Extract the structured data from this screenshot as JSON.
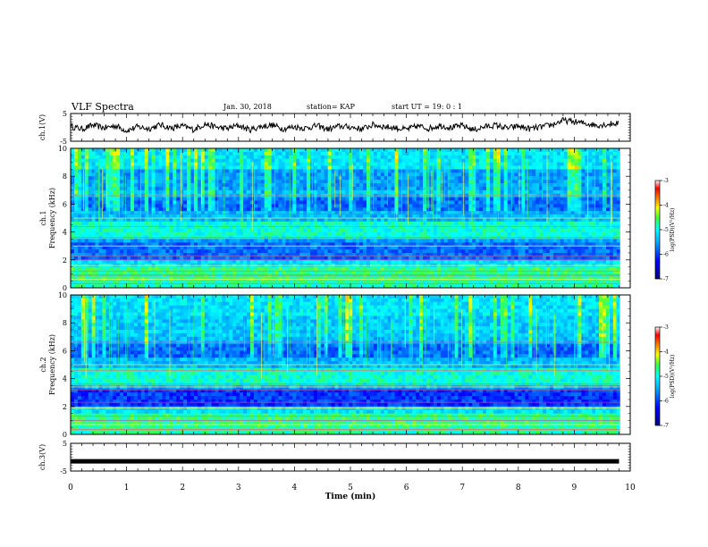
{
  "header": {
    "title": "VLF Spectra",
    "date": "Jan. 30, 2018",
    "station": "station= KAP",
    "start": "start  UT =   19: 0  : 1"
  },
  "chart_data": [
    {
      "type": "line",
      "panel": "ch1-waveform",
      "ylabel": "ch.1(V)",
      "ylim": [
        -5,
        5
      ],
      "yticks": [
        "5",
        "-5"
      ],
      "xlim": [
        0,
        10
      ],
      "series": [
        {
          "x": [
            0.0,
            0.2,
            0.4,
            0.6,
            0.8,
            1.0,
            1.2,
            1.4,
            1.6,
            1.8,
            2.0,
            2.2,
            2.4,
            2.6,
            2.8,
            3.0,
            3.2,
            3.4,
            3.6,
            3.8,
            4.0,
            4.2,
            4.4,
            4.6,
            4.8,
            5.0,
            5.2,
            5.4,
            5.6,
            5.8,
            6.0,
            6.2,
            6.4,
            6.6,
            6.8,
            7.0,
            7.2,
            7.4,
            7.6,
            7.8,
            8.0,
            8.2,
            8.4,
            8.6,
            8.8,
            9.0,
            9.2,
            9.4,
            9.6,
            9.8
          ],
          "y": [
            0.4,
            -0.6,
            0.8,
            -0.2,
            0.6,
            -1.2,
            0.2,
            -0.5,
            0.9,
            -0.3,
            0.5,
            -0.8,
            1.2,
            0.1,
            -0.4,
            0.7,
            -0.9,
            0.3,
            0.8,
            -0.5,
            0.2,
            -0.3,
            0.6,
            -0.7,
            0.4,
            0.1,
            -0.6,
            0.9,
            0.3,
            -0.2,
            -0.8,
            0.5,
            -0.4,
            0.7,
            -0.1,
            0.6,
            -0.9,
            0.2,
            0.8,
            -0.3,
            0.4,
            -0.5,
            0.1,
            0.9,
            2.5,
            2.0,
            1.4,
            0.8,
            1.1,
            1.6
          ]
        }
      ]
    },
    {
      "type": "heatmap",
      "panel": "ch1-spectrogram",
      "ylabel": "ch.1 Frequency (kHz)",
      "ylim": [
        0,
        10
      ],
      "yticks": [
        "0",
        "2",
        "4",
        "6",
        "8",
        "10"
      ],
      "xlim": [
        0,
        10
      ],
      "colorbar": {
        "label": "log(PSD)(V²/Hz)",
        "range": [
          -7,
          -3
        ],
        "ticks": [
          "-3",
          "-4",
          "-5",
          "-6",
          "-7"
        ]
      }
    },
    {
      "type": "heatmap",
      "panel": "ch2-spectrogram",
      "ylabel": "ch.2 Frequency (kHz)",
      "ylim": [
        0,
        10
      ],
      "yticks": [
        "0",
        "2",
        "4",
        "6",
        "8",
        "10"
      ],
      "xlim": [
        0,
        10
      ],
      "colorbar": {
        "label": "log(PSD)(V²/Hz)",
        "range": [
          -7,
          -3
        ],
        "ticks": [
          "-3",
          "-4",
          "-5",
          "-6",
          "-7"
        ]
      }
    },
    {
      "type": "line",
      "panel": "ch3-waveform",
      "ylabel": "ch.3(V)",
      "ylim": [
        -5,
        5
      ],
      "yticks": [
        "5",
        "-5"
      ],
      "xlim": [
        0,
        10
      ],
      "series": [
        {
          "x": [
            0,
            9.8
          ],
          "y": [
            -1.5,
            -1.5
          ]
        }
      ]
    }
  ],
  "xaxis": {
    "label": "Time (min)",
    "ticks": [
      "0",
      "1",
      "2",
      "3",
      "4",
      "5",
      "6",
      "7",
      "8",
      "9",
      "10"
    ]
  },
  "colors": {
    "scale": [
      "#00007a",
      "#0000ff",
      "#0090ff",
      "#00ffff",
      "#30ff60",
      "#ffff00",
      "#ff8000",
      "#ff0000",
      "#ffffff"
    ]
  }
}
